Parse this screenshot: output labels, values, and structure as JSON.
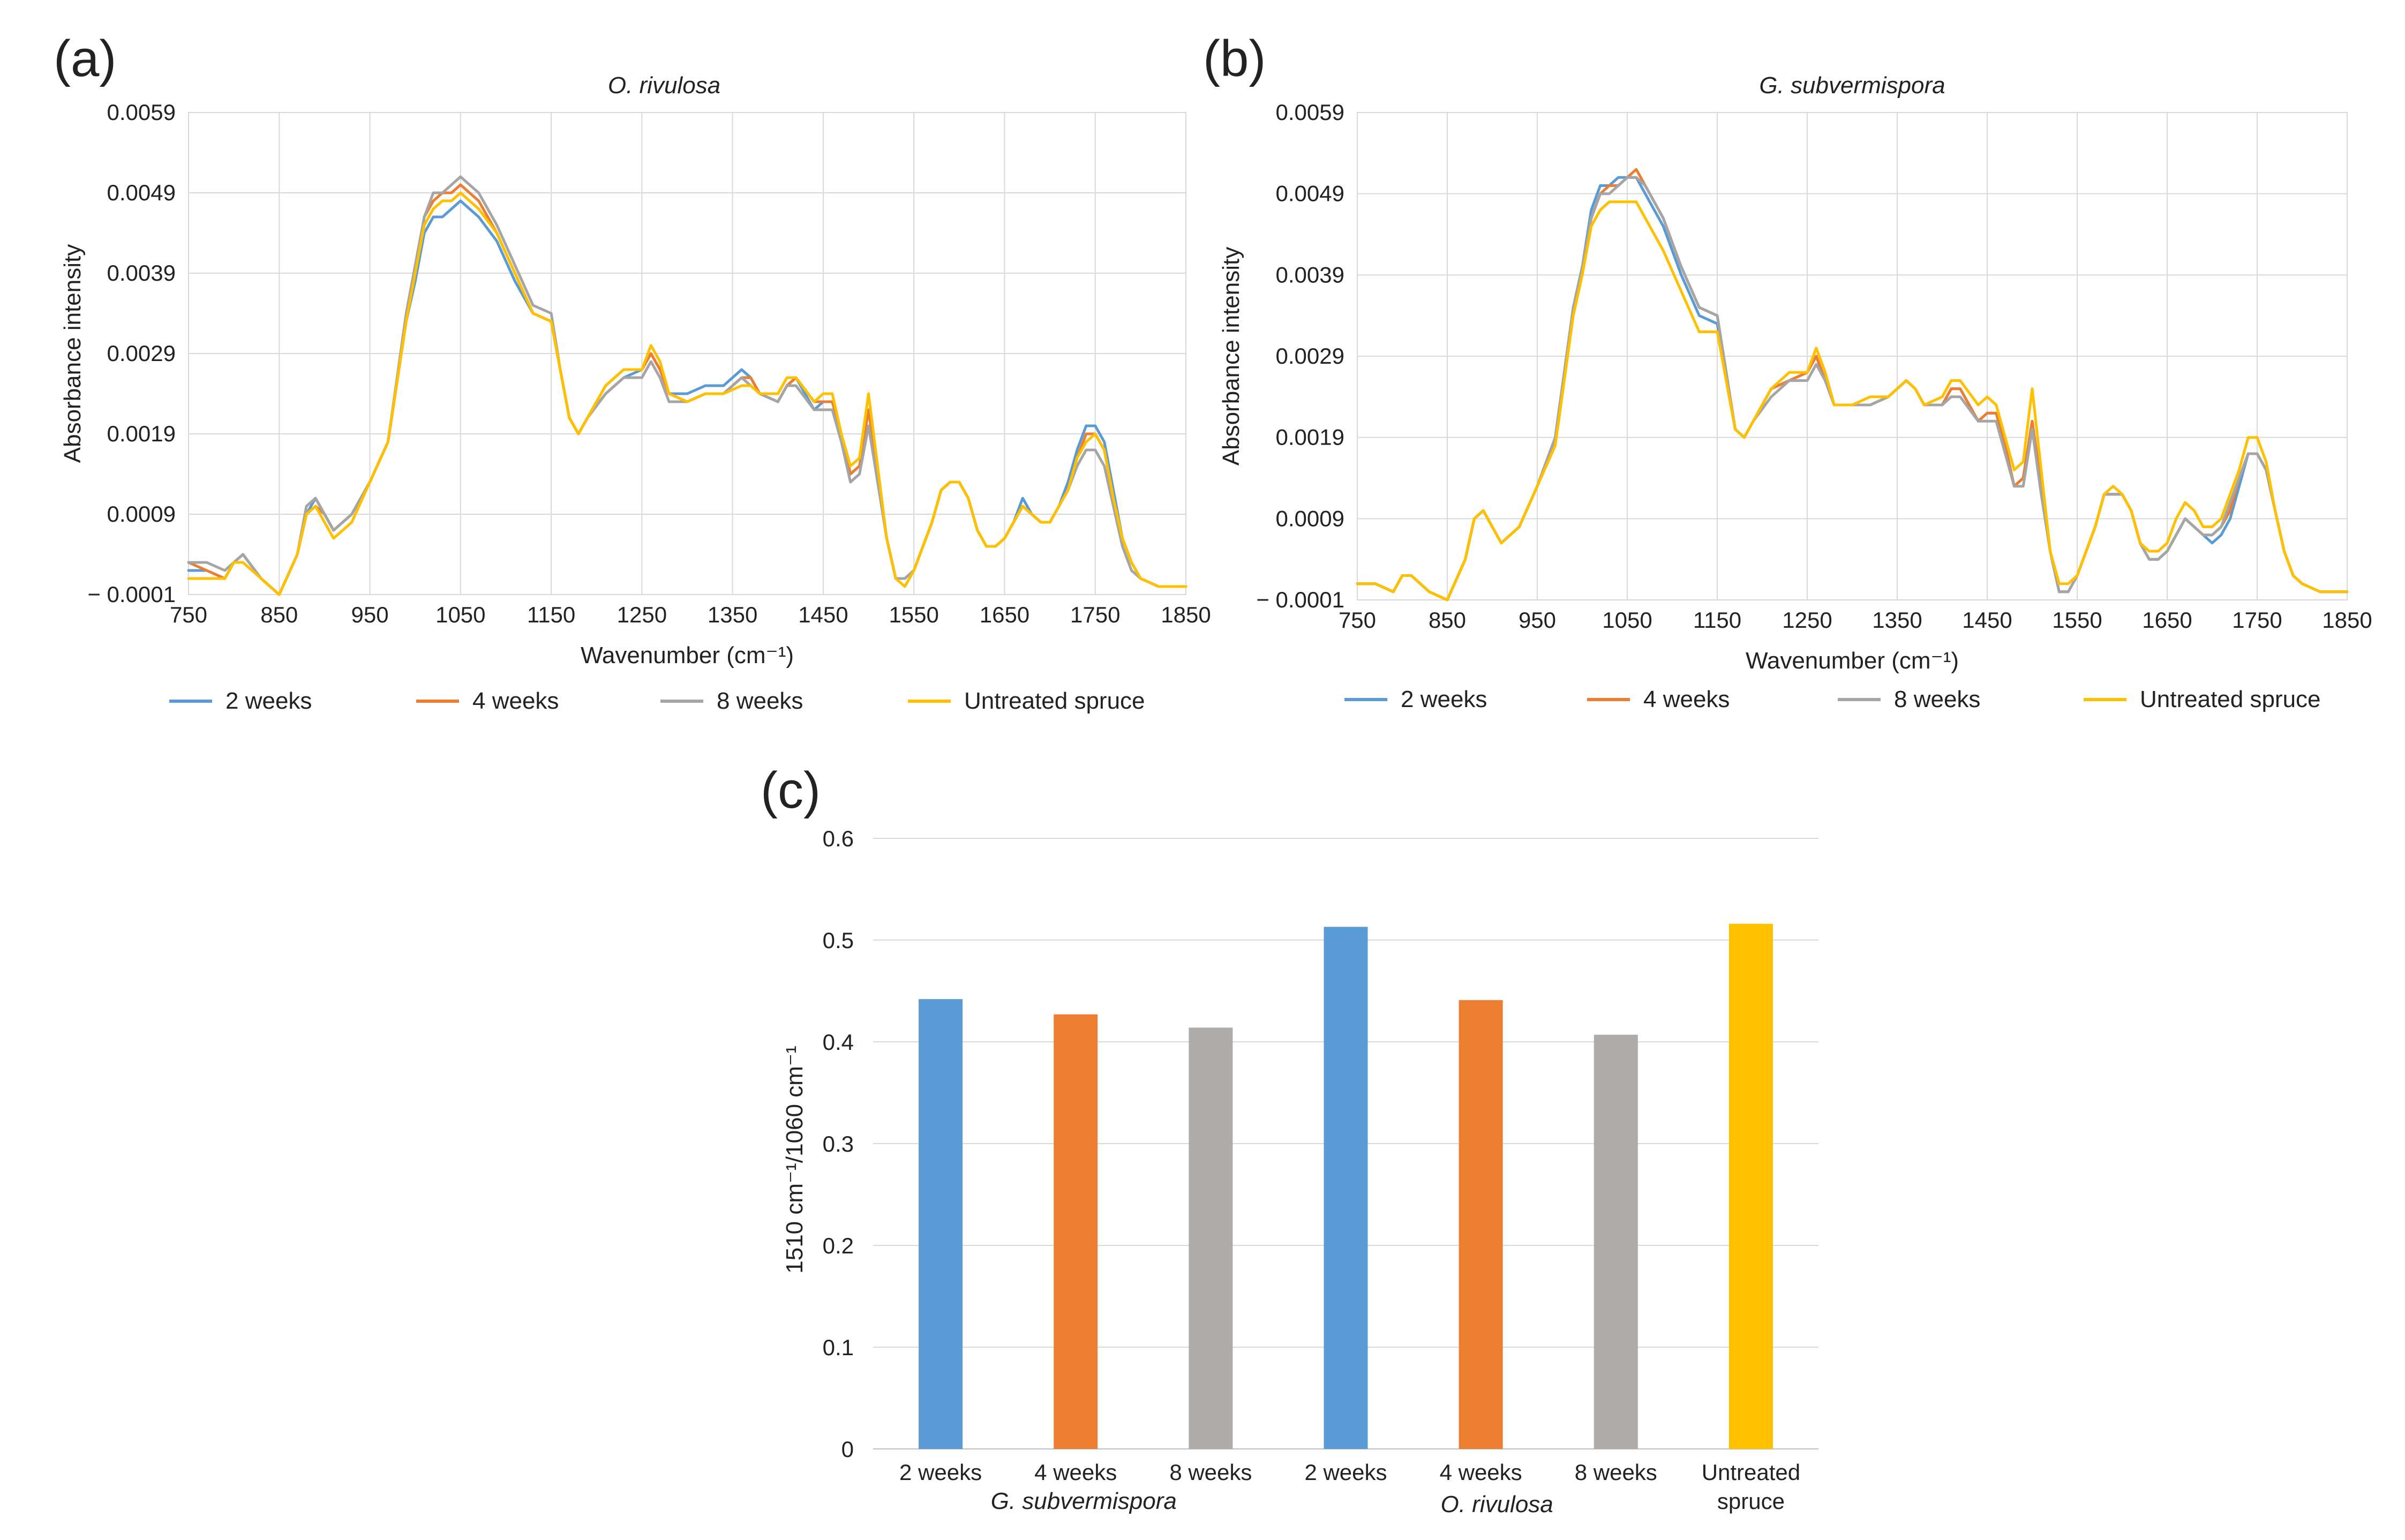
{
  "chart_data": [
    {
      "type": "line",
      "panel_label": "(a)",
      "title": "O. rivulosa",
      "xlabel": "Wavenumber (cm⁻¹)",
      "ylabel": "Absorbance intensity",
      "xlim": [
        750,
        1850
      ],
      "ylim": [
        -0.0001,
        0.0059
      ],
      "xticks": [
        "750",
        "850",
        "950",
        "1050",
        "1150",
        "1250",
        "1350",
        "1450",
        "1550",
        "1650",
        "1750",
        "1850"
      ],
      "yticks": [
        "− 0.0001",
        "0.0009",
        "0.0019",
        "0.0029",
        "0.0039",
        "0.0049",
        "0.0059"
      ],
      "legend_position": "bottom",
      "x": [
        750,
        770,
        790,
        800,
        810,
        830,
        850,
        870,
        880,
        890,
        900,
        910,
        930,
        950,
        970,
        990,
        1000,
        1010,
        1020,
        1030,
        1040,
        1050,
        1060,
        1070,
        1090,
        1110,
        1130,
        1150,
        1160,
        1170,
        1180,
        1190,
        1210,
        1230,
        1250,
        1260,
        1270,
        1280,
        1300,
        1320,
        1340,
        1360,
        1370,
        1380,
        1400,
        1410,
        1420,
        1440,
        1450,
        1460,
        1470,
        1480,
        1490,
        1500,
        1510,
        1520,
        1530,
        1540,
        1550,
        1560,
        1570,
        1580,
        1590,
        1600,
        1610,
        1620,
        1630,
        1640,
        1650,
        1660,
        1670,
        1680,
        1690,
        1700,
        1710,
        1720,
        1730,
        1740,
        1750,
        1760,
        1770,
        1780,
        1790,
        1800,
        1820,
        1850
      ],
      "series": [
        {
          "name": "2 weeks",
          "color": "#5b9bd5",
          "values": [
            0.0002,
            0.0002,
            0.0001,
            0.0003,
            0.0004,
            0.0001,
            -0.0001,
            0.0004,
            0.0009,
            0.0011,
            0.0009,
            0.0007,
            0.0009,
            0.0013,
            0.0018,
            0.0033,
            0.0038,
            0.0044,
            0.0046,
            0.0046,
            0.0047,
            0.0048,
            0.0047,
            0.0046,
            0.0043,
            0.0038,
            0.0034,
            0.0033,
            0.0027,
            0.0021,
            0.0019,
            0.0021,
            0.0024,
            0.0026,
            0.0027,
            0.0029,
            0.0027,
            0.0024,
            0.0024,
            0.0025,
            0.0025,
            0.0027,
            0.0026,
            0.0024,
            0.0023,
            0.0025,
            0.0026,
            0.0022,
            0.0023,
            0.0023,
            0.0019,
            0.0014,
            0.0015,
            0.0022,
            0.0014,
            0.0006,
            0.0001,
            0.0001,
            0.0002,
            0.0005,
            0.0008,
            0.0012,
            0.0013,
            0.0013,
            0.0011,
            0.0007,
            0.0005,
            0.0005,
            0.0006,
            0.0008,
            0.0011,
            0.0009,
            0.0008,
            0.0008,
            0.001,
            0.0013,
            0.0017,
            0.002,
            0.002,
            0.0018,
            0.0012,
            0.0006,
            0.0003,
            0.0001,
            0.0,
            0.0
          ]
        },
        {
          "name": "4 weeks",
          "color": "#ed7d31",
          "values": [
            0.0003,
            0.0002,
            0.0001,
            0.0003,
            0.0004,
            0.0001,
            -0.0001,
            0.0004,
            0.0009,
            0.001,
            0.0009,
            0.0007,
            0.0009,
            0.0013,
            0.0018,
            0.0033,
            0.0039,
            0.0046,
            0.0048,
            0.0049,
            0.0049,
            0.005,
            0.0049,
            0.0048,
            0.0044,
            0.0039,
            0.0034,
            0.0033,
            0.0027,
            0.0021,
            0.0019,
            0.0021,
            0.0025,
            0.0027,
            0.0027,
            0.0029,
            0.0027,
            0.0024,
            0.0023,
            0.0024,
            0.0024,
            0.0026,
            0.0026,
            0.0024,
            0.0023,
            0.0025,
            0.0026,
            0.0023,
            0.0023,
            0.0023,
            0.0019,
            0.0014,
            0.0015,
            0.0022,
            0.0014,
            0.0006,
            0.0001,
            0.0001,
            0.0002,
            0.0005,
            0.0008,
            0.0012,
            0.0013,
            0.0013,
            0.0011,
            0.0007,
            0.0005,
            0.0005,
            0.0006,
            0.0008,
            0.001,
            0.0009,
            0.0008,
            0.0008,
            0.001,
            0.0012,
            0.0016,
            0.0019,
            0.0019,
            0.0017,
            0.0011,
            0.0006,
            0.0003,
            0.0001,
            0.0,
            0.0
          ]
        },
        {
          "name": "8  weeks",
          "color": "#a5a5a5",
          "values": [
            0.0003,
            0.0003,
            0.0002,
            0.0003,
            0.0004,
            0.0001,
            -0.0001,
            0.0004,
            0.001,
            0.0011,
            0.0009,
            0.0007,
            0.0009,
            0.0013,
            0.0018,
            0.0034,
            0.004,
            0.0046,
            0.0049,
            0.0049,
            0.005,
            0.0051,
            0.005,
            0.0049,
            0.0045,
            0.004,
            0.0035,
            0.0034,
            0.0027,
            0.0021,
            0.0019,
            0.0021,
            0.0024,
            0.0026,
            0.0026,
            0.0028,
            0.0026,
            0.0023,
            0.0023,
            0.0024,
            0.0024,
            0.0026,
            0.0025,
            0.0024,
            0.0023,
            0.0025,
            0.0025,
            0.0022,
            0.0022,
            0.0022,
            0.0018,
            0.0013,
            0.0014,
            0.002,
            0.0013,
            0.0006,
            0.0001,
            0.0001,
            0.0002,
            0.0005,
            0.0008,
            0.0012,
            0.0013,
            0.0013,
            0.0011,
            0.0007,
            0.0005,
            0.0005,
            0.0006,
            0.0008,
            0.001,
            0.0009,
            0.0008,
            0.0008,
            0.001,
            0.0012,
            0.0015,
            0.0017,
            0.0017,
            0.0015,
            0.001,
            0.0005,
            0.0002,
            0.0001,
            0.0,
            0.0
          ]
        },
        {
          "name": "Untreated spruce",
          "color": "#ffc000",
          "values": [
            0.0001,
            0.0001,
            0.0001,
            0.0003,
            0.0003,
            0.0001,
            -0.0001,
            0.0004,
            0.0009,
            0.001,
            0.0008,
            0.0006,
            0.0008,
            0.0013,
            0.0018,
            0.0033,
            0.0039,
            0.0045,
            0.0047,
            0.0048,
            0.0048,
            0.0049,
            0.0048,
            0.0047,
            0.0044,
            0.0039,
            0.0034,
            0.0033,
            0.0027,
            0.0021,
            0.0019,
            0.0021,
            0.0025,
            0.0027,
            0.0027,
            0.003,
            0.0028,
            0.0024,
            0.0023,
            0.0024,
            0.0024,
            0.0025,
            0.0025,
            0.0024,
            0.0024,
            0.0026,
            0.0026,
            0.0023,
            0.0024,
            0.0024,
            0.0019,
            0.0015,
            0.0016,
            0.0024,
            0.0015,
            0.0006,
            0.0001,
            0.0,
            0.0002,
            0.0005,
            0.0008,
            0.0012,
            0.0013,
            0.0013,
            0.0011,
            0.0007,
            0.0005,
            0.0005,
            0.0006,
            0.0008,
            0.001,
            0.0009,
            0.0008,
            0.0008,
            0.001,
            0.0012,
            0.0016,
            0.0018,
            0.0019,
            0.0017,
            0.0011,
            0.0006,
            0.0003,
            0.0001,
            0.0,
            0.0
          ]
        }
      ]
    },
    {
      "type": "line",
      "panel_label": "(b)",
      "title": "G. subvermispora",
      "xlabel": "Wavenumber (cm⁻¹)",
      "ylabel": "Absorbance intensity",
      "xlim": [
        750,
        1850
      ],
      "ylim": [
        -0.0001,
        0.0059
      ],
      "xticks": [
        "750",
        "850",
        "950",
        "1050",
        "1150",
        "1250",
        "1350",
        "1450",
        "1550",
        "1650",
        "1750",
        "1850"
      ],
      "yticks": [
        "− 0.0001",
        "0.0009",
        "0.0019",
        "0.0029",
        "0.0039",
        "0.0049",
        "0.0059"
      ],
      "legend_position": "bottom",
      "x": [
        750,
        770,
        790,
        800,
        810,
        830,
        850,
        870,
        880,
        890,
        900,
        910,
        930,
        950,
        970,
        990,
        1000,
        1010,
        1020,
        1030,
        1040,
        1050,
        1060,
        1070,
        1090,
        1110,
        1130,
        1150,
        1160,
        1170,
        1180,
        1190,
        1210,
        1230,
        1250,
        1260,
        1270,
        1280,
        1300,
        1320,
        1340,
        1360,
        1370,
        1380,
        1400,
        1410,
        1420,
        1440,
        1450,
        1460,
        1470,
        1480,
        1490,
        1500,
        1510,
        1520,
        1530,
        1540,
        1550,
        1560,
        1570,
        1580,
        1590,
        1600,
        1610,
        1620,
        1630,
        1640,
        1650,
        1660,
        1670,
        1680,
        1690,
        1700,
        1710,
        1720,
        1730,
        1740,
        1750,
        1760,
        1770,
        1780,
        1790,
        1800,
        1820,
        1850
      ],
      "series": [
        {
          "name": "2 weeks",
          "color": "#5b9bd5",
          "values": [
            0.0001,
            0.0001,
            0.0,
            0.0002,
            0.0002,
            0.0,
            -0.0001,
            0.0004,
            0.0009,
            0.001,
            0.0008,
            0.0006,
            0.0008,
            0.0013,
            0.0019,
            0.0035,
            0.004,
            0.0047,
            0.005,
            0.005,
            0.0051,
            0.0051,
            0.0051,
            0.0049,
            0.0045,
            0.0039,
            0.0034,
            0.0033,
            0.0026,
            0.002,
            0.0019,
            0.0021,
            0.0025,
            0.0026,
            0.0027,
            0.0029,
            0.0026,
            0.0023,
            0.0023,
            0.0023,
            0.0024,
            0.0026,
            0.0025,
            0.0023,
            0.0023,
            0.0025,
            0.0025,
            0.0021,
            0.0022,
            0.0022,
            0.0018,
            0.0013,
            0.0014,
            0.0021,
            0.0013,
            0.0005,
            0.0,
            0.0,
            0.0002,
            0.0005,
            0.0008,
            0.0012,
            0.0012,
            0.0012,
            0.001,
            0.0006,
            0.0004,
            0.0004,
            0.0005,
            0.0007,
            0.0009,
            0.0008,
            0.0007,
            0.0006,
            0.0007,
            0.0009,
            0.0013,
            0.0017,
            0.0017,
            0.0015,
            0.001,
            0.0005,
            0.0002,
            0.0001,
            0.0,
            0.0
          ]
        },
        {
          "name": "4 weeks",
          "color": "#ed7d31",
          "values": [
            0.0001,
            0.0001,
            0.0,
            0.0002,
            0.0002,
            0.0,
            -0.0001,
            0.0004,
            0.0009,
            0.001,
            0.0008,
            0.0006,
            0.0008,
            0.0013,
            0.0019,
            0.0035,
            0.004,
            0.0046,
            0.0049,
            0.005,
            0.005,
            0.0051,
            0.0052,
            0.005,
            0.0046,
            0.004,
            0.0035,
            0.0034,
            0.0027,
            0.002,
            0.0019,
            0.0021,
            0.0025,
            0.0026,
            0.0027,
            0.0029,
            0.0026,
            0.0023,
            0.0023,
            0.0023,
            0.0024,
            0.0026,
            0.0025,
            0.0023,
            0.0023,
            0.0025,
            0.0025,
            0.0021,
            0.0022,
            0.0022,
            0.0018,
            0.0013,
            0.0014,
            0.0021,
            0.0013,
            0.0005,
            0.0,
            0.0,
            0.0002,
            0.0005,
            0.0008,
            0.0012,
            0.0012,
            0.0012,
            0.001,
            0.0006,
            0.0004,
            0.0004,
            0.0005,
            0.0007,
            0.0009,
            0.0008,
            0.0007,
            0.0007,
            0.0008,
            0.001,
            0.0014,
            0.0017,
            0.0017,
            0.0015,
            0.001,
            0.0005,
            0.0002,
            0.0001,
            0.0,
            0.0
          ]
        },
        {
          "name": "8 weeks",
          "color": "#a5a5a5",
          "values": [
            0.0001,
            0.0001,
            0.0,
            0.0002,
            0.0002,
            0.0,
            -0.0001,
            0.0004,
            0.0009,
            0.001,
            0.0008,
            0.0006,
            0.0008,
            0.0013,
            0.0019,
            0.0035,
            0.004,
            0.0046,
            0.0049,
            0.0049,
            0.005,
            0.0051,
            0.0051,
            0.005,
            0.0046,
            0.004,
            0.0035,
            0.0034,
            0.0027,
            0.002,
            0.0019,
            0.0021,
            0.0024,
            0.0026,
            0.0026,
            0.0028,
            0.0026,
            0.0023,
            0.0023,
            0.0023,
            0.0024,
            0.0026,
            0.0025,
            0.0023,
            0.0023,
            0.0024,
            0.0024,
            0.0021,
            0.0021,
            0.0021,
            0.0017,
            0.0013,
            0.0013,
            0.002,
            0.0012,
            0.0005,
            0.0,
            0.0,
            0.0002,
            0.0005,
            0.0008,
            0.0012,
            0.0012,
            0.0012,
            0.001,
            0.0006,
            0.0004,
            0.0004,
            0.0005,
            0.0007,
            0.0009,
            0.0008,
            0.0007,
            0.0007,
            0.0008,
            0.0011,
            0.0014,
            0.0017,
            0.0017,
            0.0015,
            0.001,
            0.0005,
            0.0002,
            0.0001,
            0.0,
            0.0
          ]
        },
        {
          "name": "Untreated spruce",
          "color": "#ffc000",
          "values": [
            0.0001,
            0.0001,
            0.0,
            0.0002,
            0.0002,
            0.0,
            -0.0001,
            0.0004,
            0.0009,
            0.001,
            0.0008,
            0.0006,
            0.0008,
            0.0013,
            0.0018,
            0.0034,
            0.0039,
            0.0045,
            0.0047,
            0.0048,
            0.0048,
            0.0048,
            0.0048,
            0.0046,
            0.0042,
            0.0037,
            0.0032,
            0.0032,
            0.0026,
            0.002,
            0.0019,
            0.0021,
            0.0025,
            0.0027,
            0.0027,
            0.003,
            0.0027,
            0.0023,
            0.0023,
            0.0024,
            0.0024,
            0.0026,
            0.0025,
            0.0023,
            0.0024,
            0.0026,
            0.0026,
            0.0023,
            0.0024,
            0.0023,
            0.0019,
            0.0015,
            0.0016,
            0.0025,
            0.0015,
            0.0005,
            0.0001,
            0.0001,
            0.0002,
            0.0005,
            0.0008,
            0.0012,
            0.0013,
            0.0012,
            0.001,
            0.0006,
            0.0005,
            0.0005,
            0.0006,
            0.0009,
            0.0011,
            0.001,
            0.0008,
            0.0008,
            0.0009,
            0.0012,
            0.0015,
            0.0019,
            0.0019,
            0.0016,
            0.001,
            0.0005,
            0.0002,
            0.0001,
            0.0,
            0.0
          ]
        }
      ]
    },
    {
      "type": "bar",
      "panel_label": "(c)",
      "title": "",
      "ylabel": "1510 cm⁻¹/1060 cm⁻¹",
      "ylim": [
        0,
        0.6
      ],
      "yticks": [
        "0",
        "0.1",
        "0.2",
        "0.3",
        "0.4",
        "0.5",
        "0.6"
      ],
      "categories": [
        {
          "label": "2 weeks",
          "value": 0.442,
          "color": "#5b9bd5"
        },
        {
          "label": "4 weeks",
          "value": 0.427,
          "color": "#ed7d31"
        },
        {
          "label": "8 weeks",
          "value": 0.414,
          "color": "#afabab"
        },
        {
          "label": "2 weeks",
          "value": 0.513,
          "color": "#5b9bd5"
        },
        {
          "label": "4 weeks",
          "value": 0.441,
          "color": "#ed7d31"
        },
        {
          "label": "8 weeks",
          "value": 0.407,
          "color": "#afabab"
        },
        {
          "label": "Untreated\nspruce",
          "value": 0.516,
          "color": "#ffc000"
        }
      ],
      "groups": [
        {
          "label": "G. subvermispora",
          "category_indices": [
            0,
            1,
            2
          ]
        },
        {
          "label": "O. rivulosa",
          "category_indices": [
            3,
            4,
            5
          ]
        }
      ]
    }
  ]
}
